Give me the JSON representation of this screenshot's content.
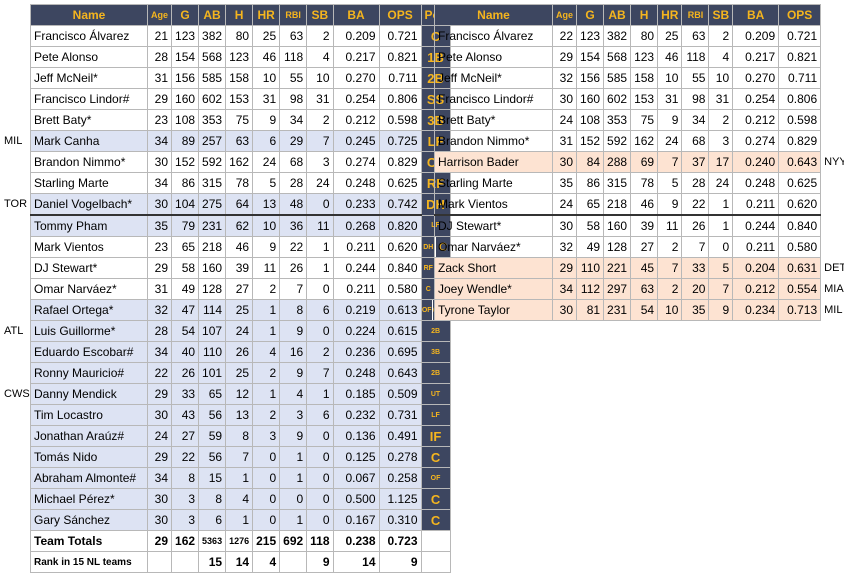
{
  "left_table": {
    "headers": {
      "name": "Name",
      "age": "Age",
      "g": "G",
      "ab": "AB",
      "h": "H",
      "hr": "HR",
      "rbi": "RBI",
      "sb": "SB",
      "ba": "BA",
      "ops": "OPS",
      "pos": "Pos"
    },
    "rows": [
      {
        "name": "Francisco Álvarez",
        "age": "21",
        "g": "123",
        "ab": "382",
        "h": "80",
        "hr": "25",
        "rbi": "63",
        "sb": "2",
        "ba": "0.209",
        "ops": "0.721",
        "pos": "C",
        "style": "",
        "pos_style": "big",
        "team": ""
      },
      {
        "name": "Pete Alonso",
        "age": "28",
        "g": "154",
        "ab": "568",
        "h": "123",
        "hr": "46",
        "rbi": "118",
        "sb": "4",
        "ba": "0.217",
        "ops": "0.821",
        "pos": "1B",
        "style": "",
        "pos_style": "big",
        "team": ""
      },
      {
        "name": "Jeff McNeil*",
        "age": "31",
        "g": "156",
        "ab": "585",
        "h": "158",
        "hr": "10",
        "rbi": "55",
        "sb": "10",
        "ba": "0.270",
        "ops": "0.711",
        "pos": "2B",
        "style": "",
        "pos_style": "big",
        "team": ""
      },
      {
        "name": "Francisco Lindor#",
        "age": "29",
        "g": "160",
        "ab": "602",
        "h": "153",
        "hr": "31",
        "rbi": "98",
        "sb": "31",
        "ba": "0.254",
        "ops": "0.806",
        "pos": "SS",
        "style": "",
        "pos_style": "big",
        "team": ""
      },
      {
        "name": "Brett Baty*",
        "age": "23",
        "g": "108",
        "ab": "353",
        "h": "75",
        "hr": "9",
        "rbi": "34",
        "sb": "2",
        "ba": "0.212",
        "ops": "0.598",
        "pos": "3B",
        "style": "",
        "pos_style": "big",
        "team": ""
      },
      {
        "name": "Mark Canha",
        "age": "34",
        "g": "89",
        "ab": "257",
        "h": "63",
        "hr": "6",
        "rbi": "29",
        "sb": "7",
        "ba": "0.245",
        "ops": "0.725",
        "pos": "LF",
        "style": "blue",
        "pos_style": "big",
        "team": "MIL"
      },
      {
        "name": "Brandon Nimmo*",
        "age": "30",
        "g": "152",
        "ab": "592",
        "h": "162",
        "hr": "24",
        "rbi": "68",
        "sb": "3",
        "ba": "0.274",
        "ops": "0.829",
        "pos": "CF",
        "style": "",
        "pos_style": "big",
        "team": ""
      },
      {
        "name": "Starling Marte",
        "age": "34",
        "g": "86",
        "ab": "315",
        "h": "78",
        "hr": "5",
        "rbi": "28",
        "sb": "24",
        "ba": "0.248",
        "ops": "0.625",
        "pos": "RF",
        "style": "",
        "pos_style": "big",
        "team": ""
      },
      {
        "name": "Daniel Vogelbach*",
        "age": "30",
        "g": "104",
        "ab": "275",
        "h": "64",
        "hr": "13",
        "rbi": "48",
        "sb": "0",
        "ba": "0.233",
        "ops": "0.742",
        "pos": "DH",
        "style": "blue",
        "pos_style": "big",
        "team": "TOR"
      },
      {
        "name": "Tommy Pham",
        "age": "35",
        "g": "79",
        "ab": "231",
        "h": "62",
        "hr": "10",
        "rbi": "36",
        "sb": "11",
        "ba": "0.268",
        "ops": "0.820",
        "pos": "LF",
        "style": "blue sep",
        "pos_style": "small",
        "team": ""
      },
      {
        "name": "Mark Vientos",
        "age": "23",
        "g": "65",
        "ab": "218",
        "h": "46",
        "hr": "9",
        "rbi": "22",
        "sb": "1",
        "ba": "0.211",
        "ops": "0.620",
        "pos": "DH",
        "style": "",
        "pos_style": "small",
        "team": ""
      },
      {
        "name": "DJ Stewart*",
        "age": "29",
        "g": "58",
        "ab": "160",
        "h": "39",
        "hr": "11",
        "rbi": "26",
        "sb": "1",
        "ba": "0.244",
        "ops": "0.840",
        "pos": "RF",
        "style": "",
        "pos_style": "small",
        "team": ""
      },
      {
        "name": "Omar Narváez*",
        "age": "31",
        "g": "49",
        "ab": "128",
        "h": "27",
        "hr": "2",
        "rbi": "7",
        "sb": "0",
        "ba": "0.211",
        "ops": "0.580",
        "pos": "C",
        "style": "",
        "pos_style": "big",
        "team": ""
      },
      {
        "name": "Rafael Ortega*",
        "age": "32",
        "g": "47",
        "ab": "114",
        "h": "25",
        "hr": "1",
        "rbi": "8",
        "sb": "6",
        "ba": "0.219",
        "ops": "0.613",
        "pos": "OF",
        "style": "blue",
        "pos_style": "small",
        "team": ""
      },
      {
        "name": "Luis Guillorme*",
        "age": "28",
        "g": "54",
        "ab": "107",
        "h": "24",
        "hr": "1",
        "rbi": "9",
        "sb": "0",
        "ba": "0.224",
        "ops": "0.615",
        "pos": "2B",
        "style": "blue",
        "pos_style": "small",
        "team": "ATL"
      },
      {
        "name": "Eduardo Escobar#",
        "age": "34",
        "g": "40",
        "ab": "110",
        "h": "26",
        "hr": "4",
        "rbi": "16",
        "sb": "2",
        "ba": "0.236",
        "ops": "0.695",
        "pos": "3B",
        "style": "blue",
        "pos_style": "small",
        "team": ""
      },
      {
        "name": "Ronny Mauricio#",
        "age": "22",
        "g": "26",
        "ab": "101",
        "h": "25",
        "hr": "2",
        "rbi": "9",
        "sb": "7",
        "ba": "0.248",
        "ops": "0.643",
        "pos": "2B",
        "style": "blue",
        "pos_style": "small",
        "team": ""
      },
      {
        "name": "Danny Mendick",
        "age": "29",
        "g": "33",
        "ab": "65",
        "h": "12",
        "hr": "1",
        "rbi": "4",
        "sb": "1",
        "ba": "0.185",
        "ops": "0.509",
        "pos": "UT",
        "style": "blue",
        "pos_style": "small",
        "team": "CWS"
      },
      {
        "name": "Tim Locastro",
        "age": "30",
        "g": "43",
        "ab": "56",
        "h": "13",
        "hr": "2",
        "rbi": "3",
        "sb": "6",
        "ba": "0.232",
        "ops": "0.731",
        "pos": "LF",
        "style": "blue",
        "pos_style": "small",
        "team": ""
      },
      {
        "name": "Jonathan Araúz#",
        "age": "24",
        "g": "27",
        "ab": "59",
        "h": "8",
        "hr": "3",
        "rbi": "9",
        "sb": "0",
        "ba": "0.136",
        "ops": "0.491",
        "pos": "IF",
        "style": "blue",
        "pos_style": "big",
        "team": ""
      },
      {
        "name": "Tomás Nido",
        "age": "29",
        "g": "22",
        "ab": "56",
        "h": "7",
        "hr": "0",
        "rbi": "1",
        "sb": "0",
        "ba": "0.125",
        "ops": "0.278",
        "pos": "C",
        "style": "blue",
        "pos_style": "big",
        "team": ""
      },
      {
        "name": "Abraham Almonte#",
        "age": "34",
        "g": "8",
        "ab": "15",
        "h": "1",
        "hr": "0",
        "rbi": "1",
        "sb": "0",
        "ba": "0.067",
        "ops": "0.258",
        "pos": "OF",
        "style": "blue",
        "pos_style": "small",
        "team": ""
      },
      {
        "name": "Michael Pérez*",
        "age": "30",
        "g": "3",
        "ab": "8",
        "h": "4",
        "hr": "0",
        "rbi": "0",
        "sb": "0",
        "ba": "0.500",
        "ops": "1.125",
        "pos": "C",
        "style": "blue",
        "pos_style": "big",
        "team": ""
      },
      {
        "name": "Gary Sánchez",
        "age": "30",
        "g": "3",
        "ab": "6",
        "h": "1",
        "hr": "0",
        "rbi": "1",
        "sb": "0",
        "ba": "0.167",
        "ops": "0.310",
        "pos": "C",
        "style": "blue",
        "pos_style": "big",
        "team": ""
      }
    ],
    "totals": {
      "label": "Team Totals",
      "age": "29",
      "g": "162",
      "ab": "5363",
      "h": "1276",
      "hr": "215",
      "rbi": "692",
      "sb": "118",
      "ba": "0.238",
      "ops": "0.723"
    },
    "rank": {
      "label": "Rank in 15 NL teams",
      "age": "",
      "g": "",
      "ab": "15",
      "h": "14",
      "hr": "4",
      "rbi": "",
      "sb": "9",
      "ba": "14",
      "ops": "9"
    }
  },
  "right_table": {
    "headers": {
      "name": "Name",
      "age": "Age",
      "g": "G",
      "ab": "AB",
      "h": "H",
      "hr": "HR",
      "rbi": "RBI",
      "sb": "SB",
      "ba": "BA",
      "ops": "OPS"
    },
    "rows": [
      {
        "name": "Francisco Álvarez",
        "age": "22",
        "g": "123",
        "ab": "382",
        "h": "80",
        "hr": "25",
        "rbi": "63",
        "sb": "2",
        "ba": "0.209",
        "ops": "0.721",
        "style": "",
        "team": ""
      },
      {
        "name": "Pete Alonso",
        "age": "29",
        "g": "154",
        "ab": "568",
        "h": "123",
        "hr": "46",
        "rbi": "118",
        "sb": "4",
        "ba": "0.217",
        "ops": "0.821",
        "style": "",
        "team": ""
      },
      {
        "name": "Jeff McNeil*",
        "age": "32",
        "g": "156",
        "ab": "585",
        "h": "158",
        "hr": "10",
        "rbi": "55",
        "sb": "10",
        "ba": "0.270",
        "ops": "0.711",
        "style": "",
        "team": ""
      },
      {
        "name": "Francisco Lindor#",
        "age": "30",
        "g": "160",
        "ab": "602",
        "h": "153",
        "hr": "31",
        "rbi": "98",
        "sb": "31",
        "ba": "0.254",
        "ops": "0.806",
        "style": "",
        "team": ""
      },
      {
        "name": "Brett Baty*",
        "age": "24",
        "g": "108",
        "ab": "353",
        "h": "75",
        "hr": "9",
        "rbi": "34",
        "sb": "2",
        "ba": "0.212",
        "ops": "0.598",
        "style": "",
        "team": ""
      },
      {
        "name": "Brandon Nimmo*",
        "age": "31",
        "g": "152",
        "ab": "592",
        "h": "162",
        "hr": "24",
        "rbi": "68",
        "sb": "3",
        "ba": "0.274",
        "ops": "0.829",
        "style": "",
        "team": ""
      },
      {
        "name": "Harrison Bader",
        "age": "30",
        "g": "84",
        "ab": "288",
        "h": "69",
        "hr": "7",
        "rbi": "37",
        "sb": "17",
        "ba": "0.240",
        "ops": "0.643",
        "style": "peach",
        "team": "NYY"
      },
      {
        "name": "Starling Marte",
        "age": "35",
        "g": "86",
        "ab": "315",
        "h": "78",
        "hr": "5",
        "rbi": "28",
        "sb": "24",
        "ba": "0.248",
        "ops": "0.625",
        "style": "",
        "team": ""
      },
      {
        "name": "Mark Vientos",
        "age": "24",
        "g": "65",
        "ab": "218",
        "h": "46",
        "hr": "9",
        "rbi": "22",
        "sb": "1",
        "ba": "0.211",
        "ops": "0.620",
        "style": "",
        "team": ""
      },
      {
        "name": "DJ Stewart*",
        "age": "30",
        "g": "58",
        "ab": "160",
        "h": "39",
        "hr": "11",
        "rbi": "26",
        "sb": "1",
        "ba": "0.244",
        "ops": "0.840",
        "style": "sep",
        "team": ""
      },
      {
        "name": "Omar Narváez*",
        "age": "32",
        "g": "49",
        "ab": "128",
        "h": "27",
        "hr": "2",
        "rbi": "7",
        "sb": "0",
        "ba": "0.211",
        "ops": "0.580",
        "style": "",
        "team": ""
      },
      {
        "name": "Zack Short",
        "age": "29",
        "g": "110",
        "ab": "221",
        "h": "45",
        "hr": "7",
        "rbi": "33",
        "sb": "5",
        "ba": "0.204",
        "ops": "0.631",
        "style": "peach",
        "team": "DET"
      },
      {
        "name": "Joey Wendle*",
        "age": "34",
        "g": "112",
        "ab": "297",
        "h": "63",
        "hr": "2",
        "rbi": "20",
        "sb": "7",
        "ba": "0.212",
        "ops": "0.554",
        "style": "peach",
        "team": "MIA"
      },
      {
        "name": "Tyrone Taylor",
        "age": "30",
        "g": "81",
        "ab": "231",
        "h": "54",
        "hr": "10",
        "rbi": "35",
        "sb": "9",
        "ba": "0.234",
        "ops": "0.713",
        "style": "peach",
        "team": "MIL"
      }
    ],
    "left_pos": [
      {
        "small": "DH",
        "big": "C"
      },
      {
        "small": "RF",
        "big": "IF"
      },
      {
        "small": "C",
        "big": "IF"
      },
      {
        "small": "OF",
        "big": "OF"
      }
    ]
  },
  "colors": {
    "header_bg": "#3d4660",
    "header_text": "#f5b51e",
    "departed_bg": "#dde3f3",
    "arrived_bg": "#fde3d2"
  }
}
